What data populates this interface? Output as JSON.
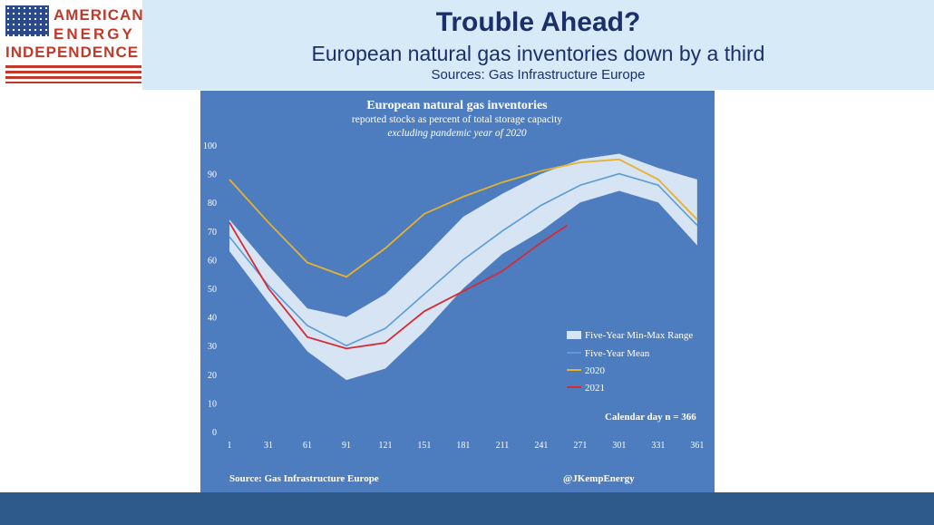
{
  "header": {
    "logo_lines": [
      "AMERICAN",
      "ENERGY",
      "INDEPENDENCE"
    ],
    "title": "Trouble Ahead?",
    "subtitle": "European natural gas inventories down by a third",
    "sources": "Sources: Gas Infrastructure Europe"
  },
  "colors": {
    "panel": "#4e7dbf",
    "range_band": "#d6e4f3",
    "mean": "#5b9bd5",
    "y2020": "#e6b22e",
    "y2021": "#d62a35",
    "text": "#ffffff"
  },
  "chart_data": {
    "type": "line",
    "title": "European natural gas inventories",
    "subtitle": "reported stocks as percent of total storage capacity",
    "subtitle2": "excluding pandemic year of 2020",
    "xlabel": "",
    "ylabel": "",
    "xlim": [
      1,
      366
    ],
    "ylim": [
      0,
      100
    ],
    "x_ticks": [
      1,
      31,
      61,
      91,
      121,
      151,
      181,
      211,
      241,
      271,
      301,
      331,
      361
    ],
    "y_ticks": [
      0,
      10,
      20,
      30,
      40,
      50,
      60,
      70,
      80,
      90,
      100
    ],
    "grid": false,
    "legend_position": "right",
    "range": {
      "name": "Five-Year Min-Max Range",
      "x": [
        1,
        31,
        61,
        91,
        121,
        151,
        181,
        211,
        241,
        271,
        301,
        331,
        361
      ],
      "min": [
        63,
        45,
        28,
        18,
        22,
        35,
        50,
        62,
        70,
        80,
        84,
        80,
        65
      ],
      "max": [
        74,
        58,
        43,
        40,
        48,
        61,
        75,
        83,
        90,
        95,
        97,
        92,
        88
      ]
    },
    "series": [
      {
        "name": "Five-Year Mean",
        "x": [
          1,
          31,
          61,
          91,
          121,
          151,
          181,
          211,
          241,
          271,
          301,
          331,
          361
        ],
        "values": [
          68,
          51,
          37,
          30,
          36,
          48,
          60,
          70,
          79,
          86,
          90,
          86,
          72
        ]
      },
      {
        "name": "2020",
        "x": [
          1,
          31,
          61,
          91,
          121,
          151,
          181,
          211,
          241,
          271,
          301,
          331,
          361
        ],
        "values": [
          88,
          73,
          59,
          54,
          64,
          76,
          82,
          87,
          91,
          94,
          95,
          88,
          74
        ]
      },
      {
        "name": "2021",
        "x": [
          1,
          31,
          61,
          91,
          121,
          151,
          181,
          211,
          241,
          261
        ],
        "values": [
          73,
          50,
          33,
          29,
          31,
          42,
          49,
          56,
          66,
          72
        ]
      }
    ],
    "annotations": {
      "calendar": "Calendar day n = 366",
      "source": "Source: Gas Infrastructure Europe",
      "handle": "@JKempEnergy"
    }
  }
}
